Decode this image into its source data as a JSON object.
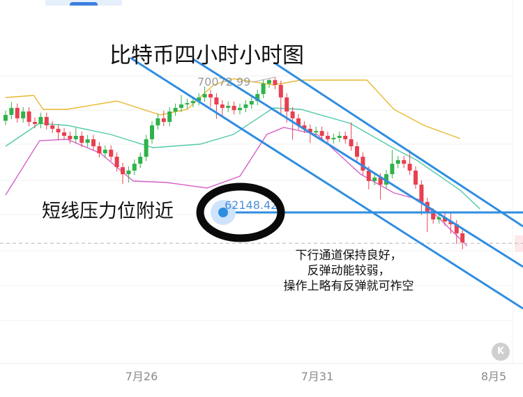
{
  "header": {
    "tab_active": true
  },
  "annotations": {
    "title": "比特币四小时小时图",
    "resistance_label": "短线压力位附近",
    "note_lines": [
      "下行通道保持良好，",
      "反弹动能较弱，",
      "操作上略有反弹就可祚空"
    ]
  },
  "controls": {
    "k_button": "K"
  },
  "chart_data": {
    "type": "candlestick",
    "interval": "4h",
    "x_ticks": [
      "7月26",
      "7月31",
      "8月5"
    ],
    "x_tick_candle_index": [
      23,
      53,
      83
    ],
    "high_label": "70072.99",
    "price_line_label": "62148.42",
    "price_line_value": 62148.42,
    "current_price_dashed": 60350,
    "colors": {
      "up": "#2fb24a",
      "down": "#e8404f",
      "upper_band": "#e8b830",
      "mid_band": "#4fc9a8",
      "lower_band": "#d65fc8",
      "channel": "#2f8de0"
    },
    "open": [
      67500,
      67840,
      68250,
      67640,
      68040,
      67430,
      67310,
      67720,
      67230,
      67030,
      66820,
      66620,
      66420,
      66620,
      66210,
      66420,
      66010,
      65600,
      65810,
      65400,
      64790,
      64380,
      64590,
      64990,
      65400,
      66420,
      67230,
      67640,
      67430,
      68040,
      68250,
      68450,
      68530,
      68650,
      68860,
      69060,
      68860,
      68450,
      68250,
      68370,
      68120,
      68250,
      68450,
      68650,
      69060,
      69670,
      69870,
      69590,
      68860,
      68040,
      67640,
      67230,
      67030,
      66820,
      66900,
      66620,
      66420,
      66500,
      66620,
      66420,
      66010,
      65400,
      64590,
      63980,
      64180,
      63770,
      64380,
      64990,
      65200,
      64990,
      64590,
      63770,
      62760,
      62150,
      61740,
      61860,
      61620,
      61460,
      60930
    ],
    "high": [
      68090,
      68600,
      68500,
      68290,
      68290,
      67680,
      67970,
      67970,
      67480,
      67280,
      67070,
      66870,
      67070,
      66870,
      66670,
      66670,
      66260,
      66060,
      66060,
      65650,
      65040,
      64840,
      65240,
      65650,
      66670,
      67480,
      67890,
      68090,
      68290,
      68500,
      69000,
      68780,
      68900,
      69110,
      69500,
      69310,
      69110,
      68700,
      68620,
      68620,
      68500,
      68700,
      68900,
      69310,
      69920,
      69950,
      70072.99,
      69840,
      69110,
      68290,
      67890,
      67480,
      67280,
      67150,
      67150,
      66870,
      66750,
      66870,
      66870,
      67400,
      66260,
      65650,
      64840,
      64430,
      64430,
      64630,
      65800,
      65450,
      65450,
      65800,
      64840,
      64020,
      63010,
      62400,
      62110,
      62110,
      62110,
      61710,
      61180
    ],
    "low": [
      67250,
      67590,
      67390,
      67390,
      67180,
      67060,
      67060,
      66980,
      66780,
      66370,
      66370,
      66170,
      66170,
      65960,
      65960,
      65760,
      65350,
      65350,
      65150,
      64540,
      63800,
      63900,
      64340,
      64740,
      65150,
      66170,
      66980,
      67180,
      67180,
      67790,
      68000,
      68200,
      68280,
      68400,
      68610,
      68300,
      67600,
      67800,
      68000,
      67870,
      67870,
      68000,
      68200,
      68400,
      68810,
      69420,
      69340,
      67800,
      67400,
      66400,
      66980,
      66780,
      66200,
      66570,
      66370,
      66170,
      66170,
      66250,
      66170,
      65760,
      65150,
      64340,
      63500,
      63730,
      62900,
      63520,
      64130,
      64740,
      64740,
      64340,
      63520,
      62000,
      61000,
      61490,
      61490,
      61370,
      60900,
      60300,
      60000
    ],
    "close": [
      67840,
      68250,
      67640,
      68040,
      67430,
      67310,
      67720,
      67230,
      67030,
      66820,
      66620,
      66420,
      66620,
      66210,
      66420,
      66010,
      65600,
      65810,
      65400,
      64790,
      64380,
      64590,
      64990,
      65400,
      66420,
      67230,
      67640,
      67430,
      68040,
      68250,
      68450,
      68530,
      68650,
      68860,
      69060,
      68860,
      68450,
      68250,
      68370,
      68120,
      68250,
      68450,
      68650,
      69060,
      69670,
      69870,
      69590,
      68860,
      68040,
      67640,
      67230,
      67030,
      66820,
      66900,
      66620,
      66420,
      66500,
      66620,
      66420,
      66010,
      65400,
      64590,
      63980,
      64180,
      63770,
      64380,
      64990,
      65200,
      64990,
      64590,
      63770,
      62760,
      62150,
      61740,
      61860,
      61620,
      61460,
      60930,
      60400
    ],
    "bollinger": {
      "upper": [
        [
          0,
          68855
        ],
        [
          4.8,
          68977
        ],
        [
          6.4,
          68164
        ],
        [
          10.5,
          68164
        ],
        [
          19,
          68652
        ],
        [
          26.4,
          67839
        ],
        [
          31,
          68164
        ],
        [
          35.5,
          69587
        ],
        [
          39,
          69953
        ],
        [
          45.7,
          69587
        ],
        [
          50.4,
          69872
        ],
        [
          61.7,
          69872
        ],
        [
          66.3,
          68164
        ],
        [
          71.4,
          67229
        ],
        [
          77.6,
          66457
        ]
      ],
      "middle": [
        [
          0,
          66010
        ],
        [
          5.8,
          67351
        ],
        [
          10.5,
          67229
        ],
        [
          17.9,
          66701
        ],
        [
          25.2,
          65928
        ],
        [
          33.2,
          66132
        ],
        [
          38.9,
          66701
        ],
        [
          45.7,
          68246
        ],
        [
          50.4,
          68164
        ],
        [
          58.8,
          67351
        ],
        [
          66.3,
          65888
        ],
        [
          70.2,
          65197
        ],
        [
          77.6,
          63449
        ],
        [
          81,
          62350
        ]
      ],
      "lower": [
        [
          0,
          63164
        ],
        [
          5.8,
          66335
        ],
        [
          10.5,
          66416
        ],
        [
          16.2,
          65603
        ],
        [
          21.8,
          63977
        ],
        [
          27.5,
          63896
        ],
        [
          34.4,
          63571
        ],
        [
          40,
          64262
        ],
        [
          44.6,
          66701
        ],
        [
          47.5,
          67107
        ],
        [
          53.2,
          66701
        ],
        [
          60.6,
          64384
        ],
        [
          66.3,
          63286
        ],
        [
          70.8,
          62880
        ],
        [
          74.8,
          61538
        ],
        [
          78.8,
          60197
        ]
      ]
    }
  }
}
